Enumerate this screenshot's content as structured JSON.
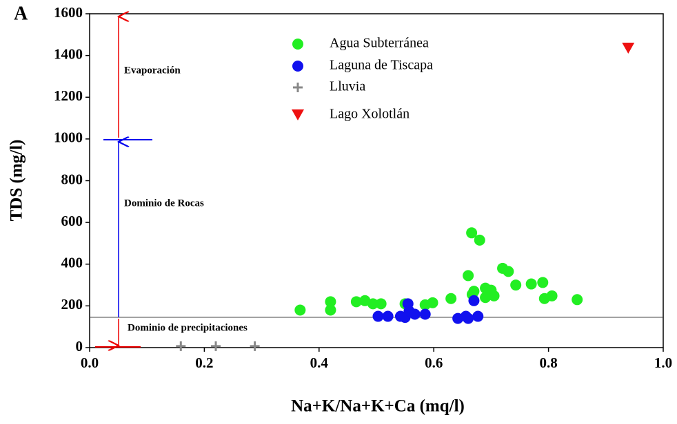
{
  "chart_data": {
    "type": "scatter",
    "panel_label": "A",
    "xlabel": "Na+K/Na+K+Ca (mq/l)",
    "ylabel": "TDS (mg/l)",
    "xlim": [
      0,
      1
    ],
    "ylim": [
      0,
      1600
    ],
    "xticks": [
      {
        "value": 0,
        "label": "0.0"
      },
      0.2,
      0.4,
      0.6,
      0.8,
      {
        "value": 1,
        "label": "1.0"
      }
    ],
    "yticks": [
      0,
      200,
      400,
      600,
      800,
      1000,
      1200,
      1400,
      1600
    ],
    "annotations": [
      "Evaporación",
      "Dominio de Rocas",
      "Dominio de precipitaciones"
    ],
    "series": [
      {
        "name": "Agua Subterránea",
        "color": "#22ee22",
        "marker": "circle",
        "x": [
          0.367,
          0.42,
          0.42,
          0.465,
          0.48,
          0.494,
          0.508,
          0.55,
          0.585,
          0.598,
          0.63,
          0.66,
          0.666,
          0.68,
          0.667,
          0.67,
          0.69,
          0.7,
          0.69,
          0.705,
          0.72,
          0.73,
          0.743,
          0.77,
          0.79,
          0.793,
          0.806,
          0.85
        ],
        "values": [
          180,
          220,
          180,
          220,
          225,
          210,
          210,
          210,
          205,
          215,
          235,
          345,
          550,
          515,
          255,
          270,
          285,
          275,
          240,
          248,
          380,
          365,
          300,
          305,
          312,
          235,
          248,
          230
        ]
      },
      {
        "name": "Laguna de Tiscapa",
        "color": "#1111ee",
        "marker": "circle",
        "x": [
          0.503,
          0.52,
          0.542,
          0.55,
          0.555,
          0.557,
          0.567,
          0.585,
          0.642,
          0.656,
          0.66,
          0.67,
          0.677
        ],
        "values": [
          150,
          150,
          150,
          145,
          210,
          175,
          160,
          160,
          140,
          150,
          140,
          225,
          150
        ]
      },
      {
        "name": "Lluvia",
        "color": "#888888",
        "marker": "plus",
        "x": [
          0.159,
          0.22,
          0.288
        ],
        "values": [
          7,
          7,
          7
        ]
      },
      {
        "name": "Lago Xolotlán",
        "color": "#ee1111",
        "marker": "triangle-down",
        "x": [
          0.939
        ],
        "values": [
          1435
        ]
      }
    ]
  }
}
